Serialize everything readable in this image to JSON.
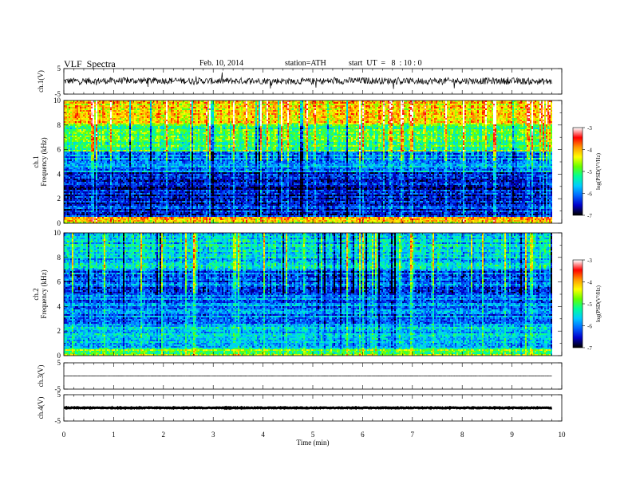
{
  "header": {
    "title": "VLF  Spectra",
    "date": "Feb. 10, 2014",
    "station": "station=ATH",
    "start": "start  UT  =   8  : 10 : 0"
  },
  "colors": {
    "spectrogram_scale": [
      "#000000",
      "#0000cc",
      "#0066ff",
      "#00ccff",
      "#00ff99",
      "#66ff00",
      "#ffff00",
      "#ff9900",
      "#ff0000",
      "#ffffff"
    ]
  },
  "chart_data": [
    {
      "type": "line",
      "panel": "ch1-waveform",
      "ylabel": "ch.1(V)",
      "ylim": [
        -5,
        5
      ],
      "yticks": [
        "5",
        "-5"
      ],
      "x": [
        0,
        1,
        2,
        3,
        4,
        5,
        6,
        7,
        8,
        9,
        9.8
      ],
      "series": [
        {
          "values": [
            0.1,
            0.2,
            0.3,
            0.1,
            0.2,
            0.0,
            0.3,
            0.1,
            0.2,
            0.1,
            -0.1
          ]
        }
      ],
      "note_amplitude": 1.3
    },
    {
      "type": "heatmap",
      "panel": "ch1-spectrogram",
      "ylabel": "ch.1\nFrequency  (kHz)",
      "ylim": [
        0,
        10
      ],
      "yticks": [
        "0",
        "2",
        "4",
        "6",
        "8",
        "10"
      ],
      "xlim": [
        0,
        9.8
      ],
      "colorbar": {
        "label": "log(PSD(V²/Hz)",
        "range": [
          -7,
          -3
        ],
        "ticks": [
          "-3",
          "-4",
          "-5",
          "-6",
          "-7"
        ]
      },
      "bands": [
        {
          "f": [
            0,
            0.5
          ],
          "logpsd": -4.2
        },
        {
          "f": [
            0.5,
            2.0
          ],
          "logpsd": -6.4
        },
        {
          "f": [
            2.0,
            4.2
          ],
          "logpsd": -6.5
        },
        {
          "f": [
            4.2,
            5.8
          ],
          "logpsd": -5.9
        },
        {
          "f": [
            5.8,
            8.0
          ],
          "logpsd": -5.0
        },
        {
          "f": [
            8.0,
            10.0
          ],
          "logpsd": -4.2
        }
      ]
    },
    {
      "type": "heatmap",
      "panel": "ch2-spectrogram",
      "ylabel": "ch.2\nFrequency  (kHz)",
      "ylim": [
        0,
        10
      ],
      "yticks": [
        "0",
        "2",
        "4",
        "6",
        "8",
        "10"
      ],
      "xlim": [
        0,
        9.8
      ],
      "colorbar": {
        "label": "log(PSD(V²/Hz)",
        "range": [
          -7,
          -3
        ],
        "ticks": [
          "-3",
          "-4",
          "-5",
          "-6",
          "-7"
        ]
      },
      "bands": [
        {
          "f": [
            0,
            0.5
          ],
          "logpsd": -4.8
        },
        {
          "f": [
            0.5,
            2.5
          ],
          "logpsd": -5.6
        },
        {
          "f": [
            2.5,
            5.0
          ],
          "logpsd": -6.0
        },
        {
          "f": [
            5.0,
            7.0
          ],
          "logpsd": -6.1
        },
        {
          "f": [
            7.0,
            10.0
          ],
          "logpsd": -5.6
        }
      ]
    },
    {
      "type": "line",
      "panel": "ch3-waveform",
      "ylabel": "ch.3(V)",
      "ylim": [
        -5,
        5
      ],
      "yticks": [
        "5",
        "-5"
      ],
      "x": [
        0,
        9.8
      ],
      "series": [
        {
          "values": [
            0,
            0
          ]
        }
      ],
      "note_amplitude": 0.05
    },
    {
      "type": "line",
      "panel": "ch4-waveform",
      "ylabel": "ch.4(V)",
      "ylim": [
        -5,
        5
      ],
      "yticks": [
        "5",
        "-5"
      ],
      "x": [
        0,
        9.8
      ],
      "series": [
        {
          "values": [
            0,
            0
          ]
        }
      ],
      "note_amplitude": 0.15
    }
  ],
  "xaxis": {
    "label": "Time  (min)",
    "range": [
      0,
      10
    ],
    "ticks": [
      "0",
      "1",
      "2",
      "3",
      "4",
      "5",
      "6",
      "7",
      "8",
      "9",
      "10"
    ]
  }
}
